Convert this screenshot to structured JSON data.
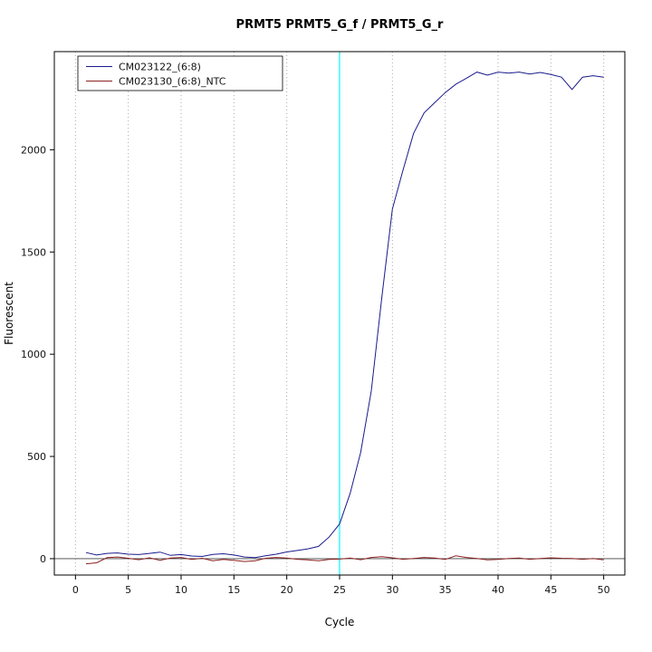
{
  "chart_data": {
    "type": "line",
    "title": "PRMT5  PRMT5_G_f / PRMT5_G_r",
    "xlabel": "Cycle",
    "ylabel": "Fluorescent",
    "xlim": [
      -2,
      52
    ],
    "ylim": [
      -80,
      2480
    ],
    "xticks": [
      0,
      5,
      10,
      15,
      20,
      25,
      30,
      35,
      40,
      45,
      50
    ],
    "yticks": [
      0,
      500,
      1000,
      1500,
      2000
    ],
    "grid": {
      "vertical_dotted": true,
      "color": "#aaaaaa"
    },
    "baseline": {
      "y": 0,
      "color": "#404040"
    },
    "threshold_vline": {
      "x": 25,
      "color": "#00ffff"
    },
    "legend_position": "top-left",
    "x": [
      1,
      2,
      3,
      4,
      5,
      6,
      7,
      8,
      9,
      10,
      11,
      12,
      13,
      14,
      15,
      16,
      17,
      18,
      19,
      20,
      21,
      22,
      23,
      24,
      25,
      26,
      27,
      28,
      29,
      30,
      31,
      32,
      33,
      34,
      35,
      36,
      37,
      38,
      39,
      40,
      41,
      42,
      43,
      44,
      45,
      46,
      47,
      48,
      49,
      50
    ],
    "series": [
      {
        "name": "CM023122_(6:8)",
        "color": "#1a1a8c",
        "values": [
          30,
          18,
          26,
          28,
          22,
          20,
          26,
          32,
          16,
          20,
          13,
          11,
          21,
          24,
          18,
          8,
          5,
          14,
          22,
          33,
          40,
          48,
          60,
          105,
          170,
          320,
          520,
          820,
          1280,
          1710,
          1900,
          2080,
          2180,
          2230,
          2280,
          2320,
          2350,
          2380,
          2365,
          2380,
          2375,
          2380,
          2370,
          2378,
          2368,
          2355,
          2295,
          2355,
          2362,
          2355
        ]
      },
      {
        "name": "CM023130_(6:8)_NTC",
        "color": "#8b2020",
        "values": [
          -25,
          -20,
          5,
          8,
          2,
          -5,
          4,
          -8,
          3,
          6,
          -4,
          2,
          -10,
          -4,
          -8,
          -14,
          -10,
          2,
          6,
          3,
          -3,
          -6,
          -10,
          -4,
          -2,
          3,
          -5,
          6,
          10,
          4,
          -3,
          1,
          6,
          3,
          -4,
          14,
          6,
          1,
          -6,
          -4,
          1,
          3,
          -3,
          1,
          4,
          2,
          1,
          -3,
          1,
          -6
        ]
      }
    ]
  }
}
